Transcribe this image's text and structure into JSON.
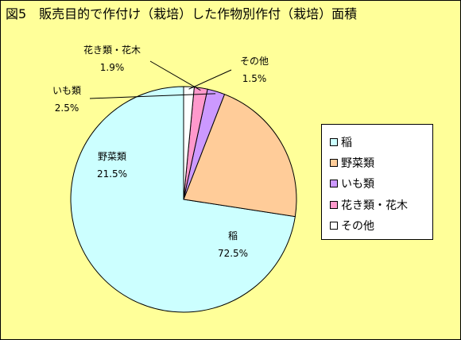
{
  "chart_data": {
    "type": "pie",
    "title": "図5　販売目的で作付け（栽培）した作物別作付（栽培）面積",
    "categories": [
      "稲",
      "野菜類",
      "いも類",
      "花き類・花木",
      "その他"
    ],
    "values": [
      72.5,
      21.5,
      2.5,
      1.9,
      1.5
    ],
    "value_labels": [
      "72.5%",
      "21.5%",
      "2.5%",
      "1.9%",
      "1.5%"
    ],
    "colors": [
      "#ccffff",
      "#ffcc99",
      "#cc99ff",
      "#ff99cc",
      "#ffffff"
    ],
    "legend_position": "right",
    "background": "#ffff99"
  }
}
